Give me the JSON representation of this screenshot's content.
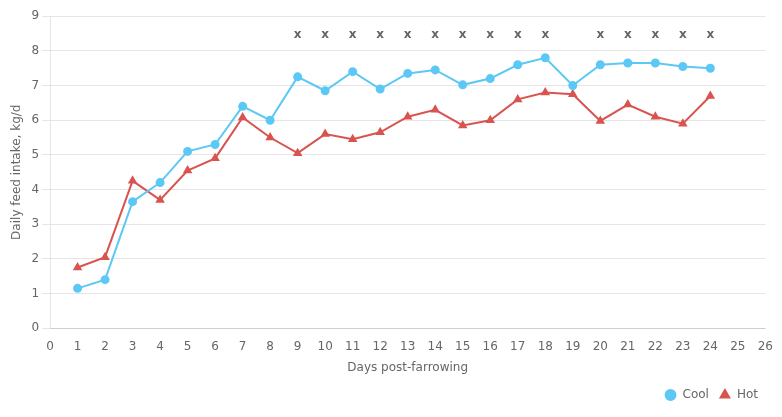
{
  "chart_data": {
    "type": "line",
    "x_label": "Days post-farrowing",
    "y_label": "Daily feed intake, kg/d",
    "x": [
      1,
      2,
      3,
      4,
      5,
      6,
      7,
      8,
      9,
      10,
      11,
      12,
      13,
      14,
      15,
      16,
      17,
      18,
      19,
      20,
      21,
      22,
      23,
      24
    ],
    "series": [
      {
        "name": "Cool",
        "color": "#5bc8f5",
        "marker": "circle",
        "line_style": "solid",
        "values": [
          1.15,
          1.4,
          3.65,
          4.2,
          5.1,
          5.3,
          6.4,
          6.0,
          7.25,
          6.85,
          7.4,
          6.9,
          7.35,
          7.45,
          7.02,
          7.2,
          7.6,
          7.8,
          7.0,
          7.6,
          7.65,
          7.65,
          7.55,
          7.5
        ]
      },
      {
        "name": "Hot",
        "color": "#d9534f",
        "marker": "triangle",
        "line_style": "solid",
        "values": [
          1.75,
          2.05,
          4.25,
          3.7,
          4.55,
          4.9,
          6.08,
          5.5,
          5.05,
          5.6,
          5.45,
          5.65,
          6.1,
          6.3,
          5.85,
          6.0,
          6.6,
          6.8,
          6.75,
          5.98,
          6.45,
          6.1,
          5.9,
          6.7
        ]
      }
    ],
    "annotations": [
      {
        "text": "x",
        "x": 9,
        "y": 8.45
      },
      {
        "text": "x",
        "x": 10,
        "y": 8.45
      },
      {
        "text": "x",
        "x": 11,
        "y": 8.45
      },
      {
        "text": "x",
        "x": 12,
        "y": 8.45
      },
      {
        "text": "x",
        "x": 13,
        "y": 8.45
      },
      {
        "text": "x",
        "x": 14,
        "y": 8.45
      },
      {
        "text": "x",
        "x": 15,
        "y": 8.45
      },
      {
        "text": "x",
        "x": 16,
        "y": 8.45
      },
      {
        "text": "x",
        "x": 17,
        "y": 8.45
      },
      {
        "text": "x",
        "x": 18,
        "y": 8.45
      },
      {
        "text": "x",
        "x": 20,
        "y": 8.45
      },
      {
        "text": "x",
        "x": 21,
        "y": 8.45
      },
      {
        "text": "x",
        "x": 22,
        "y": 8.45
      },
      {
        "text": "x",
        "x": 23,
        "y": 8.45
      },
      {
        "text": "x",
        "x": 24,
        "y": 8.45
      }
    ],
    "xlim": [
      0,
      26
    ],
    "xticks": [
      0,
      1,
      2,
      3,
      4,
      5,
      6,
      7,
      8,
      9,
      10,
      11,
      12,
      13,
      14,
      15,
      16,
      17,
      18,
      19,
      20,
      21,
      22,
      23,
      24,
      25,
      26
    ],
    "ylim": [
      0,
      9
    ],
    "yticks": [
      0,
      1,
      2,
      3,
      4,
      5,
      6,
      7,
      8,
      9
    ],
    "grid": "y",
    "legend": "lower right"
  }
}
